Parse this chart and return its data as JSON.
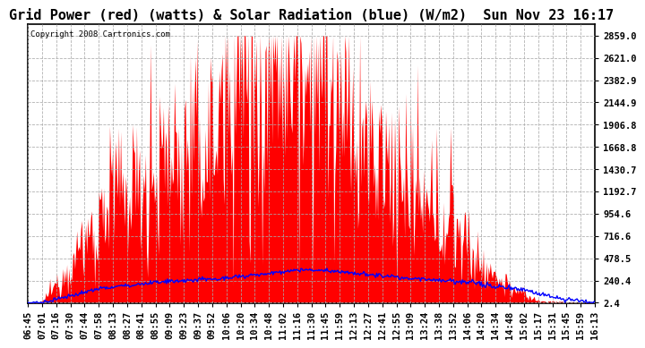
{
  "title": "Grid Power (red) (watts) & Solar Radiation (blue) (W/m2)  Sun Nov 23 16:17",
  "copyright": "Copyright 2008 Cartronics.com",
  "yticks": [
    2859.0,
    2621.0,
    2382.9,
    2144.9,
    1906.8,
    1668.8,
    1430.7,
    1192.7,
    954.6,
    716.6,
    478.5,
    240.4,
    2.4
  ],
  "ymin": 0,
  "ymax": 2980,
  "xtick_labels": [
    "06:45",
    "07:01",
    "07:16",
    "07:30",
    "07:44",
    "07:58",
    "08:13",
    "08:27",
    "08:41",
    "08:55",
    "09:09",
    "09:23",
    "09:37",
    "09:52",
    "10:06",
    "10:20",
    "10:34",
    "10:48",
    "11:02",
    "11:16",
    "11:30",
    "11:45",
    "11:59",
    "12:13",
    "12:27",
    "12:41",
    "12:55",
    "13:09",
    "13:24",
    "13:38",
    "13:52",
    "14:06",
    "14:20",
    "14:34",
    "14:48",
    "15:02",
    "15:17",
    "15:31",
    "15:45",
    "15:59",
    "16:13"
  ],
  "grid_color": "#aaaaaa",
  "red_color": "#ff0000",
  "blue_color": "#0000ff",
  "background_color": "#ffffff",
  "fill_color": "#ff0000",
  "title_fontsize": 11,
  "tick_fontsize": 7.5,
  "copyright_fontsize": 6.5
}
